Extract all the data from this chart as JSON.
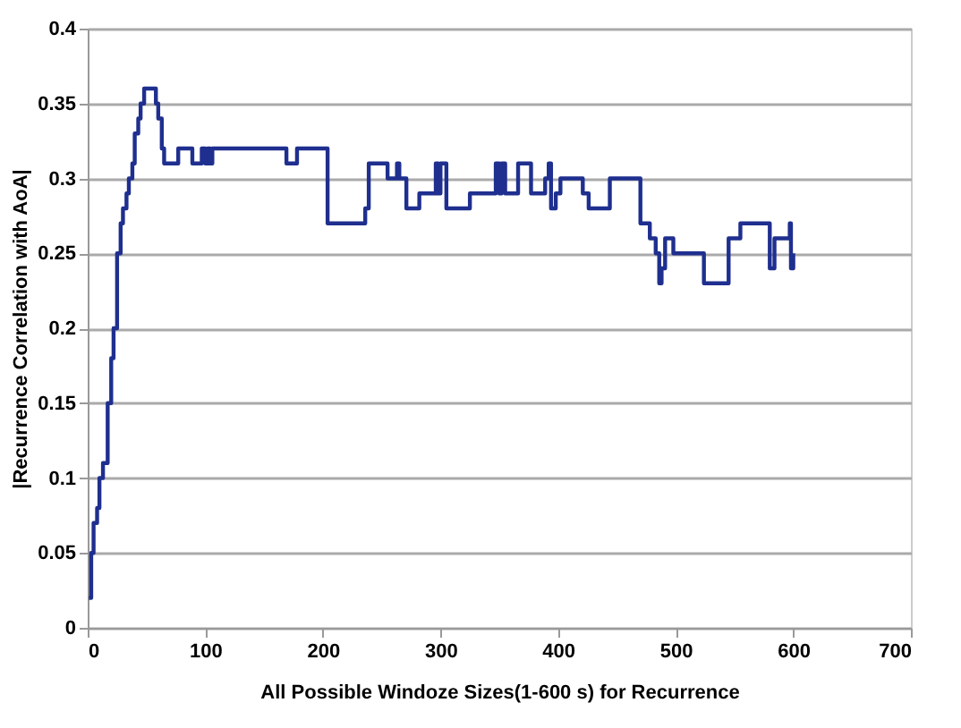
{
  "chart_data": {
    "type": "step",
    "xlabel": "All Possible Windoze Sizes(1-600 s) for Recurrence",
    "ylabel": "|Recurrence Correlation with AoA|",
    "x": [
      1,
      3,
      5,
      8,
      10,
      13,
      15,
      17,
      20,
      22,
      25,
      28,
      30,
      33,
      35,
      38,
      40,
      43,
      45,
      48,
      50,
      53,
      55,
      58,
      60,
      63,
      65,
      77,
      89,
      97,
      100,
      102,
      104,
      106,
      115,
      169,
      178,
      204,
      236,
      239,
      255,
      263,
      265,
      267,
      271,
      282,
      296,
      298,
      300,
      305,
      313,
      325,
      347,
      350,
      352,
      355,
      366,
      377,
      389,
      392,
      394,
      398,
      402,
      421,
      426,
      444,
      470,
      478,
      483,
      486,
      488,
      491,
      498,
      524,
      545,
      555,
      580,
      584,
      597,
      598,
      600
    ],
    "series": [
      {
        "color": "#1f2f8f",
        "values": [
          0.02,
          0.05,
          0.07,
          0.08,
          0.1,
          0.11,
          0.11,
          0.15,
          0.18,
          0.2,
          0.25,
          0.27,
          0.28,
          0.29,
          0.3,
          0.31,
          0.33,
          0.34,
          0.35,
          0.36,
          0.36,
          0.36,
          0.36,
          0.35,
          0.34,
          0.32,
          0.31,
          0.32,
          0.31,
          0.32,
          0.31,
          0.32,
          0.31,
          0.32,
          0.32,
          0.31,
          0.32,
          0.27,
          0.28,
          0.31,
          0.3,
          0.31,
          0.3,
          0.3,
          0.28,
          0.29,
          0.31,
          0.29,
          0.31,
          0.28,
          0.28,
          0.29,
          0.31,
          0.29,
          0.31,
          0.29,
          0.31,
          0.29,
          0.3,
          0.31,
          0.28,
          0.29,
          0.3,
          0.29,
          0.28,
          0.3,
          0.27,
          0.26,
          0.25,
          0.23,
          0.24,
          0.26,
          0.25,
          0.23,
          0.26,
          0.27,
          0.24,
          0.26,
          0.27,
          0.24,
          0.25
        ]
      }
    ],
    "xlim": [
      0,
      700
    ],
    "xticks": [
      0,
      100,
      200,
      300,
      400,
      500,
      600,
      700
    ],
    "ylim": [
      0,
      0.4
    ],
    "yticks": [
      0,
      0.05,
      0.1,
      0.15,
      0.2,
      0.25,
      0.3,
      0.35,
      0.4
    ],
    "grid": "y"
  }
}
